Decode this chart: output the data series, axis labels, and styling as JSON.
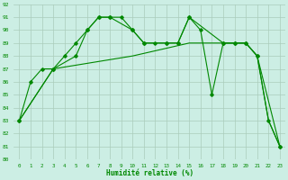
{
  "xlabel": "Humidité relative (%)",
  "xlim": [
    -0.5,
    23.5
  ],
  "ylim": [
    80,
    92
  ],
  "yticks": [
    80,
    81,
    82,
    83,
    84,
    85,
    86,
    87,
    88,
    89,
    90,
    91,
    92
  ],
  "xticks": [
    0,
    1,
    2,
    3,
    4,
    5,
    6,
    7,
    8,
    9,
    10,
    11,
    12,
    13,
    14,
    15,
    16,
    17,
    18,
    19,
    20,
    21,
    22,
    23
  ],
  "bg_color": "#cceee4",
  "grid_color": "#aaccbb",
  "line_color": "#008800",
  "line1_x": [
    0,
    1,
    2,
    3,
    4,
    5,
    6,
    7,
    8,
    9,
    10,
    11,
    12,
    13,
    14,
    15,
    16,
    17,
    18,
    19,
    20,
    21,
    22,
    23
  ],
  "line1_y": [
    83,
    86,
    87,
    87,
    88,
    89,
    90,
    91,
    91,
    91,
    90,
    89,
    89,
    89,
    89,
    91,
    90,
    85,
    89,
    89,
    89,
    88,
    83,
    81
  ],
  "line2_x": [
    0,
    3,
    5,
    6,
    7,
    8,
    10,
    11,
    13,
    14,
    15,
    18,
    19,
    20,
    21,
    23
  ],
  "line2_y": [
    83,
    87,
    88,
    90,
    91,
    91,
    90,
    89,
    89,
    89,
    91,
    89,
    89,
    89,
    88,
    81
  ],
  "line3_x": [
    0,
    3,
    10,
    15,
    17,
    19,
    20,
    21,
    22,
    23
  ],
  "line3_y": [
    83,
    87,
    88,
    89,
    89,
    89,
    89,
    88,
    83,
    81
  ]
}
